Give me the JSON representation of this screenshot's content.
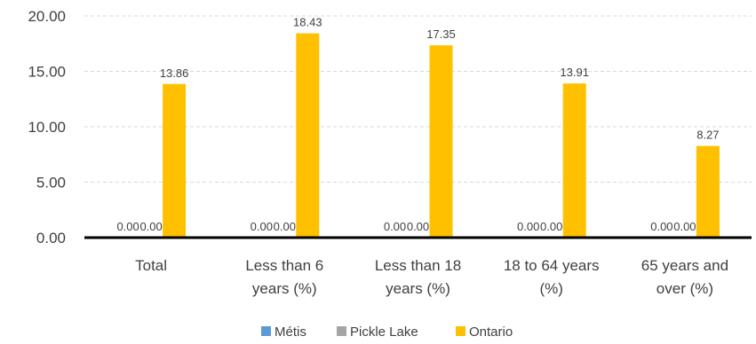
{
  "chart_data": {
    "type": "bar",
    "categories": [
      [
        "Total"
      ],
      [
        "Less than 6",
        "years (%)"
      ],
      [
        "Less than 18",
        "years (%)"
      ],
      [
        "18 to 64 years",
        "(%)"
      ],
      [
        "65 years and",
        "over (%)"
      ]
    ],
    "series": [
      {
        "name": "Métis",
        "color": "#5B9BD5",
        "values": [
          0.0,
          0.0,
          0.0,
          0.0,
          0.0
        ],
        "labels": [
          "0.00",
          "0.00",
          "0.00",
          "0.00",
          "0.00"
        ]
      },
      {
        "name": "Pickle Lake",
        "color": "#A5A5A5",
        "values": [
          0.0,
          0.0,
          0.0,
          0.0,
          0.0
        ],
        "labels": [
          "0.00",
          "0.00",
          "0.00",
          "0.00",
          "0.00"
        ]
      },
      {
        "name": "Ontario",
        "color": "#FFC000",
        "values": [
          13.86,
          18.43,
          17.35,
          13.91,
          8.27
        ],
        "labels": [
          "13.86",
          "18.43",
          "17.35",
          "13.91",
          "8.27"
        ]
      }
    ],
    "yticks": [
      "0.00",
      "5.00",
      "10.00",
      "15.00",
      "20.00"
    ],
    "ylim": [
      0,
      20
    ],
    "grid": true,
    "legend": "bottom"
  }
}
